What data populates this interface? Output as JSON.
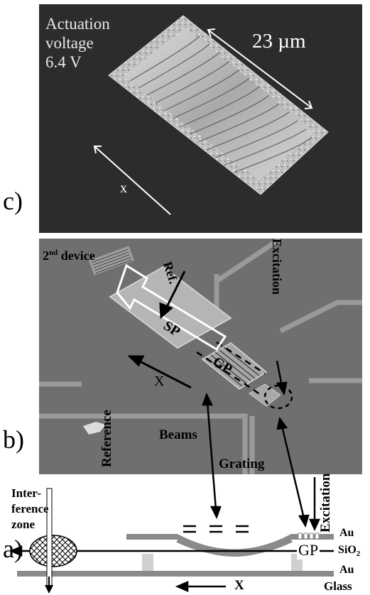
{
  "panel_c": {
    "letter": "c)",
    "voltage_line1": "Actuation",
    "voltage_line2": "voltage",
    "voltage_line3": "6.4 V",
    "size_label": "23 µm",
    "axis_label": "x"
  },
  "panel_b": {
    "letter": "b)",
    "device_label_pre": "2",
    "device_label_sup": "nd",
    "device_label_post": " device",
    "ref_label": "Ref.",
    "sp_label": "SP",
    "gp_label": "GP",
    "excitation_label": "Excitation",
    "x_label": "X",
    "beams_label": "Beams"
  },
  "panel_a": {
    "letter": "a)",
    "grating_label": "Grating",
    "reference_label": "Reference",
    "excitation_label": "Excitation",
    "interference_line1": "Inter-",
    "interference_line2": "ference",
    "interference_line3": "zone",
    "au_top": "Au",
    "sio2_label": "SiO",
    "sio2_sub": "2",
    "au_bottom": "Au",
    "gp_label": "GP",
    "x_label": "X",
    "glass_label": "Glass"
  },
  "colors": {
    "sem_dark_bg": "#2c2c2c",
    "sem_gray_bg": "#6f6f6f",
    "layer_gray": "#8a8a8a",
    "support_light": "#d0d0d0"
  }
}
